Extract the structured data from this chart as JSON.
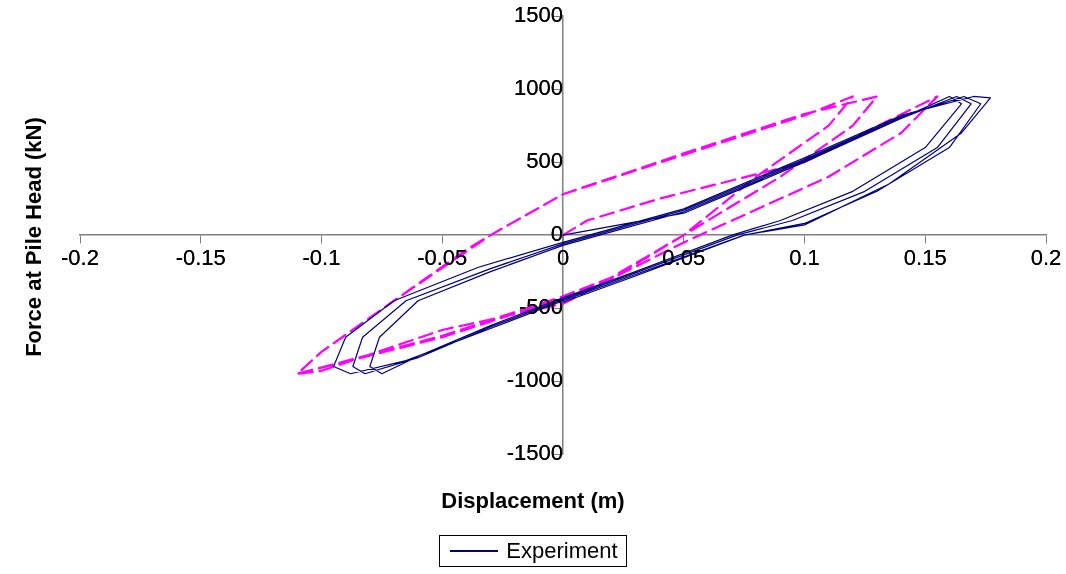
{
  "chart_data": {
    "type": "line",
    "xlabel": "Displacement (m)",
    "ylabel": "Force at Pile Head (kN)",
    "xlim": [
      -0.2,
      0.2
    ],
    "xticks": [
      -0.2,
      -0.15,
      -0.1,
      -0.05,
      0,
      0.05,
      0.1,
      0.15,
      0.2
    ],
    "ylim": [
      -1500,
      1500
    ],
    "yticks": [
      -1500,
      -1000,
      -500,
      0,
      500,
      1000,
      1500
    ],
    "grid": false,
    "legend": "bottom",
    "marker": "none",
    "series": [
      {
        "name": "Experiment",
        "color": "#000080",
        "line_style": "solid",
        "x": [
          0,
          0.05,
          0.1,
          0.14,
          0.16,
          0.165,
          0.15,
          0.12,
          0.09,
          0.07,
          0.03,
          0,
          -0.03,
          -0.06,
          -0.075,
          -0.08,
          -0.076,
          -0.06,
          -0.03,
          0,
          0.05,
          0.1,
          0.14,
          0.163,
          0.169,
          0.155,
          0.125,
          0.095,
          0.072,
          0.03,
          0,
          -0.03,
          -0.06,
          -0.082,
          -0.087,
          -0.083,
          -0.065,
          -0.03,
          0,
          0.05,
          0.1,
          0.14,
          0.166,
          0.173,
          0.16,
          0.13,
          0.1,
          0.075,
          0.03,
          0,
          -0.03,
          -0.065,
          -0.088,
          -0.095,
          -0.09,
          -0.07,
          -0.035,
          0,
          0.05,
          0.1,
          0.14,
          0.17,
          0.177,
          0.165,
          0.135,
          0.1,
          0.075,
          0.03,
          0
        ],
        "values": [
          0,
          150,
          500,
          800,
          950,
          900,
          600,
          300,
          100,
          0,
          -250,
          -430,
          -620,
          -830,
          -950,
          -900,
          -700,
          -450,
          -250,
          -70,
          160,
          510,
          800,
          950,
          900,
          600,
          300,
          100,
          0,
          -260,
          -440,
          -630,
          -840,
          -950,
          -900,
          -700,
          -450,
          -230,
          -60,
          170,
          520,
          810,
          950,
          900,
          600,
          300,
          80,
          0,
          -270,
          -450,
          -640,
          -860,
          -950,
          -900,
          -700,
          -450,
          -220,
          -50,
          180,
          530,
          820,
          950,
          940,
          700,
          350,
          70,
          0,
          -280,
          -460
        ]
      },
      {
        "color": "#ff00ff",
        "line_style": "dashed",
        "x": [
          0,
          0.01,
          0.04,
          0.1,
          0.155,
          0.14,
          0.11,
          0.07,
          0.05,
          0.02,
          0,
          -0.05,
          -0.1,
          -0.11,
          -0.1,
          -0.07,
          -0.04,
          -0.03,
          0,
          0.05,
          0.1,
          0.12,
          0.11,
          0.08,
          0.05,
          0.02,
          0,
          -0.05,
          -0.11,
          -0.1,
          -0.07,
          -0.03,
          0,
          0.05,
          0.1,
          0.13,
          0.12,
          0.09,
          0.05,
          0.02,
          0,
          -0.05,
          -0.11
        ],
        "values": [
          0,
          100,
          250,
          500,
          950,
          700,
          400,
          100,
          -50,
          -300,
          -470,
          -650,
          -930,
          -950,
          -800,
          -450,
          -100,
          0,
          280,
          550,
          820,
          950,
          750,
          400,
          0,
          -300,
          -430,
          -700,
          -950,
          -800,
          -450,
          0,
          280,
          560,
          830,
          950,
          750,
          400,
          0,
          -290,
          -420,
          -690,
          -950
        ]
      }
    ]
  }
}
